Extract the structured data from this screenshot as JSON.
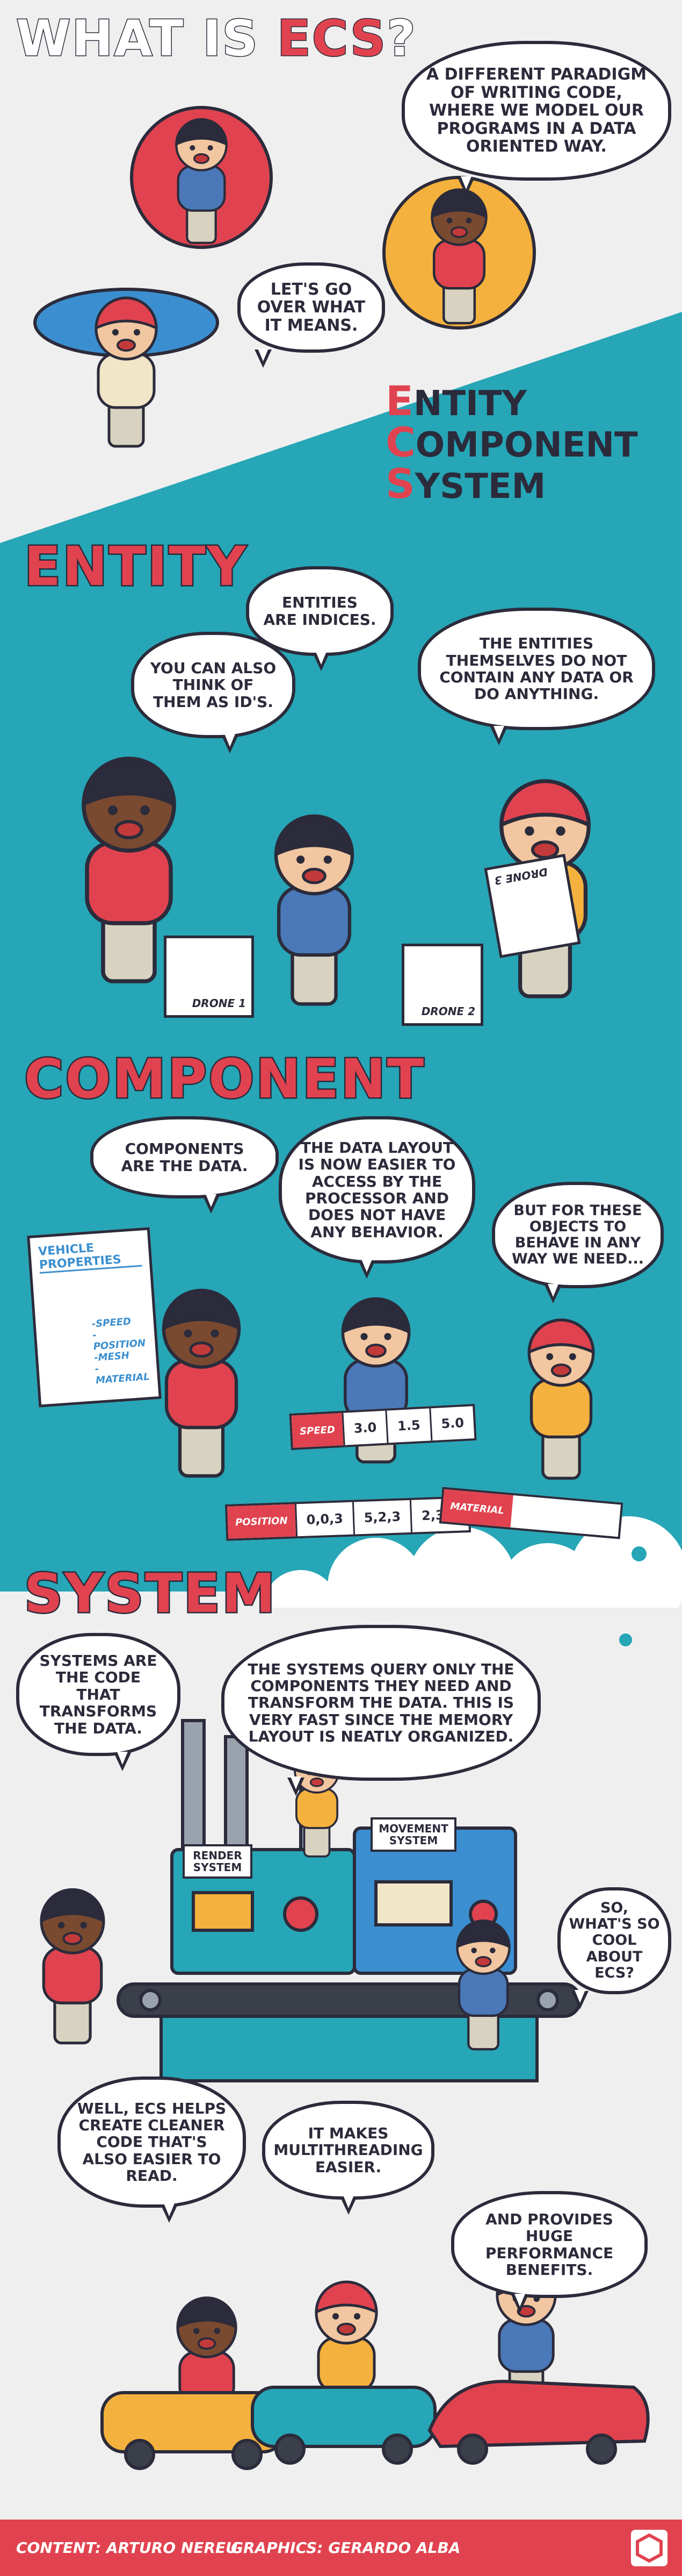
{
  "header": {
    "title_start": "WHAT IS",
    "title_highlight": "ECS",
    "title_end": "?"
  },
  "intro": {
    "bubbles": [
      "A DIFFERENT PARADIGM OF WRITING CODE, WHERE WE MODEL OUR PROGRAMS IN A DATA ORIENTED WAY.",
      "LET'S GO OVER WHAT IT MEANS."
    ],
    "acronym": [
      "ENTITY",
      "COMPONENT",
      "SYSTEM"
    ]
  },
  "entity": {
    "heading": "ENTITY",
    "bubbles": [
      "ENTITIES ARE INDICES.",
      "YOU CAN ALSO THINK OF THEM AS ID'S.",
      "THE ENTITIES THEMSELVES DO NOT CONTAIN ANY DATA OR DO ANYTHING."
    ],
    "boxes": [
      "DRONE 1",
      "DRONE 2",
      "DRONE 3"
    ]
  },
  "component": {
    "heading": "COMPONENT",
    "bubbles": [
      "COMPONENTS ARE THE DATA.",
      "THE DATA LAYOUT IS NOW EASIER TO ACCESS BY THE PROCESSOR AND DOES NOT HAVE ANY BEHAVIOR.",
      "BUT FOR THESE OBJECTS TO BEHAVE IN ANY WAY WE NEED..."
    ],
    "poster": {
      "title": "VEHICLE PROPERTIES",
      "items": [
        "-SPEED",
        "-POSITION",
        "-MESH",
        "-MATERIAL"
      ]
    },
    "strips": [
      {
        "label": "SPEED",
        "cells": [
          "3.0",
          "1.5",
          "5.0"
        ]
      },
      {
        "label": "POSITION",
        "cells": [
          "0,0,3",
          "5,2,3",
          "2,3,2"
        ]
      },
      {
        "label": "MATERIAL"
      }
    ]
  },
  "system": {
    "heading": "SYSTEM",
    "bubbles": [
      "SYSTEMS ARE THE CODE THAT TRANSFORMS THE DATA.",
      "THE SYSTEMS QUERY ONLY THE COMPONENTS THEY NEED AND TRANSFORM THE DATA. THIS IS VERY FAST SINCE THE MEMORY LAYOUT IS NEATLY ORGANIZED.",
      "SO, WHAT'S SO COOL ABOUT ECS?"
    ],
    "machines": [
      "RENDER SYSTEM",
      "MOVEMENT SYSTEM"
    ]
  },
  "outro": {
    "bubbles": [
      "WELL, ECS HELPS CREATE CLEANER CODE THAT'S ALSO EASIER TO READ.",
      "IT MAKES MULTITHREADING EASIER.",
      "AND PROVIDES HUGE PERFORMANCE BENEFITS."
    ]
  },
  "footer": {
    "content": "CONTENT: ARTURO NEREU",
    "graphics": "GRAPHICS: GERARDO ALBA"
  }
}
